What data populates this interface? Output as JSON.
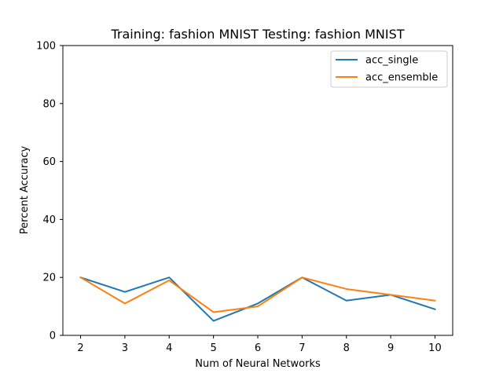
{
  "chart_data": {
    "type": "line",
    "title": "Training: fashion MNIST  Testing: fashion MNIST",
    "xlabel": "Num of Neural Networks",
    "ylabel": "Percent Accuracy",
    "x": [
      2,
      3,
      4,
      5,
      6,
      7,
      8,
      9,
      10
    ],
    "xlim": [
      1.6,
      10.4
    ],
    "ylim": [
      0,
      100
    ],
    "xticks": [
      "2",
      "3",
      "4",
      "5",
      "6",
      "7",
      "8",
      "9",
      "10"
    ],
    "yticks": [
      "0",
      "20",
      "40",
      "60",
      "80",
      "100"
    ],
    "ytick_values": [
      0,
      20,
      40,
      60,
      80,
      100
    ],
    "grid": false,
    "legend_position": "top-right",
    "series": [
      {
        "name": "acc_single",
        "color": "#1f77b4",
        "values": [
          20,
          15,
          20,
          5,
          11,
          20,
          12,
          14,
          9
        ]
      },
      {
        "name": "acc_ensemble",
        "color": "#ff7f0e",
        "values": [
          20,
          11,
          19,
          8,
          10,
          20,
          16,
          14,
          12
        ]
      }
    ]
  }
}
